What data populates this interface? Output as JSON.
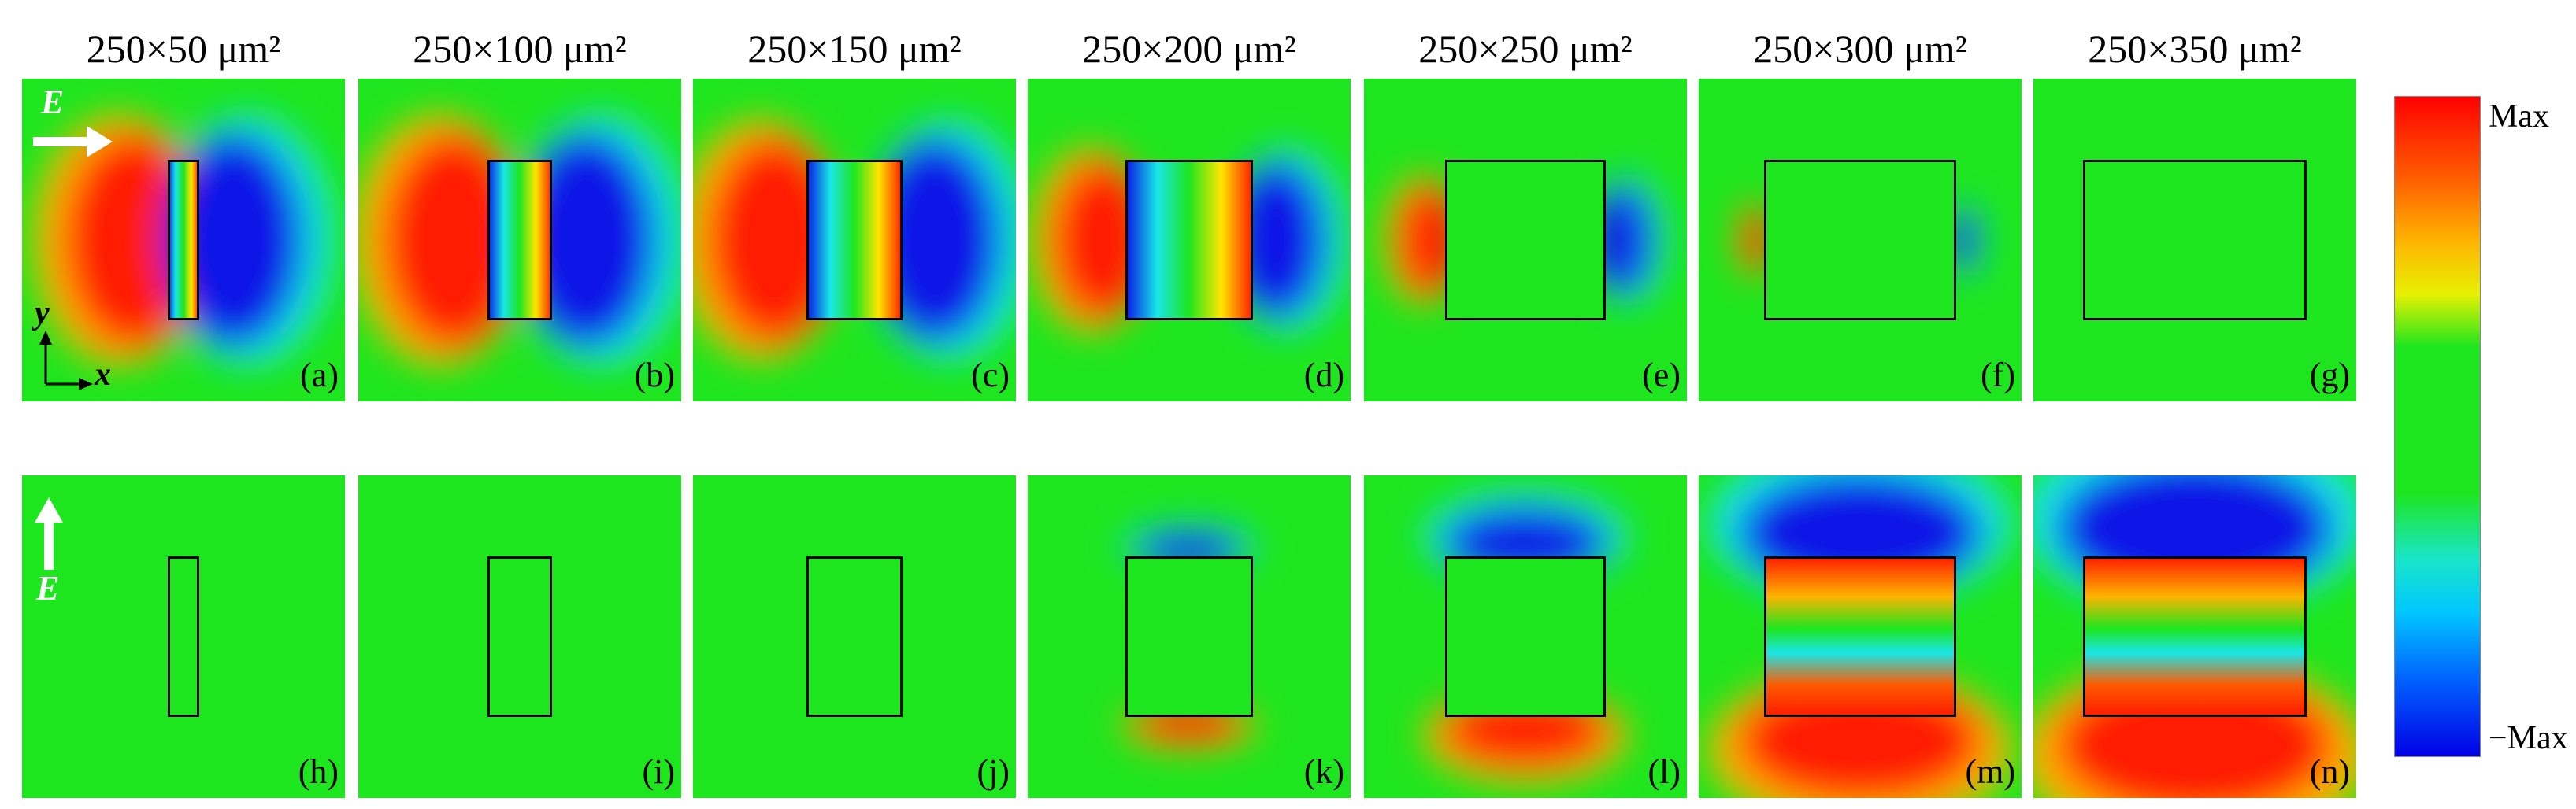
{
  "columns": [
    "250×50 μm²",
    "250×100 μm²",
    "250×150 μm²",
    "250×200 μm²",
    "250×250 μm²",
    "250×300 μm²",
    "250×350 μm²"
  ],
  "top_labels": [
    "(a)",
    "(b)",
    "(c)",
    "(d)",
    "(e)",
    "(f)",
    "(g)"
  ],
  "bottom_labels": [
    "(h)",
    "(i)",
    "(j)",
    "(k)",
    "(l)",
    "(m)",
    "(n)"
  ],
  "top_row_E_label": "E",
  "bottom_row_E_label": "E",
  "axis": {
    "y": "y",
    "x": "x"
  },
  "colorbar": {
    "max_label": "Max",
    "min_label": "−Max"
  },
  "colors": {
    "red": "#ff1a00",
    "green": "#1ee61e",
    "blue": "#0a14e6",
    "cyan": "#19e6e6"
  }
}
